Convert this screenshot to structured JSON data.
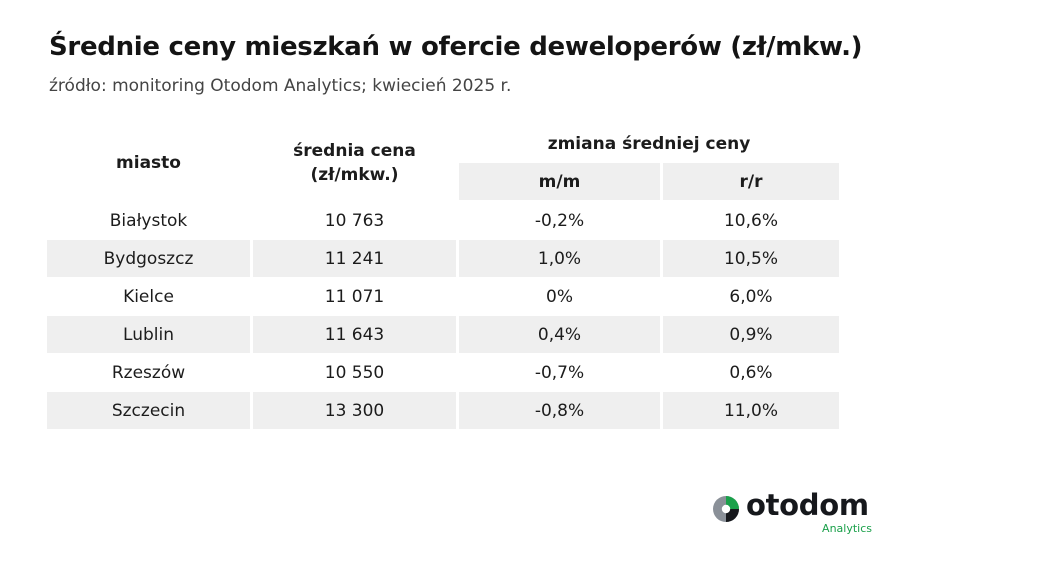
{
  "header": {
    "title": "Średnie ceny mieszkań w ofercie deweloperów (zł/mkw.)",
    "subtitle": "źródło: monitoring Otodom Analytics; kwiecień 2025 r."
  },
  "table": {
    "col_city": "miasto",
    "col_price_line1": "średnia cena",
    "col_price_line2": "(zł/mkw.)",
    "col_change_group": "zmiana średniej ceny",
    "col_mm": "m/m",
    "col_rr": "r/r",
    "rows": [
      {
        "city": "Białystok",
        "price": "10 763",
        "mm": "-0,2%",
        "rr": "10,6%"
      },
      {
        "city": "Bydgoszcz",
        "price": "11 241",
        "mm": "1,0%",
        "rr": "10,5%"
      },
      {
        "city": "Kielce",
        "price": "11 071",
        "mm": "0%",
        "rr": "6,0%"
      },
      {
        "city": "Lublin",
        "price": "11 643",
        "mm": "0,4%",
        "rr": "0,9%"
      },
      {
        "city": "Rzeszów",
        "price": "10 550",
        "mm": "-0,7%",
        "rr": "0,6%"
      },
      {
        "city": "Szczecin",
        "price": "13 300",
        "mm": "-0,8%",
        "rr": "11,0%"
      }
    ]
  },
  "logo": {
    "wordmark": "otodom",
    "sub": "Analytics",
    "icon": "otodom-logo-icon"
  },
  "colors": {
    "shade": "#efefef",
    "brand_green": "#1aa04a",
    "logo_dark": "#16181c",
    "logo_grey": "#8a9098"
  }
}
